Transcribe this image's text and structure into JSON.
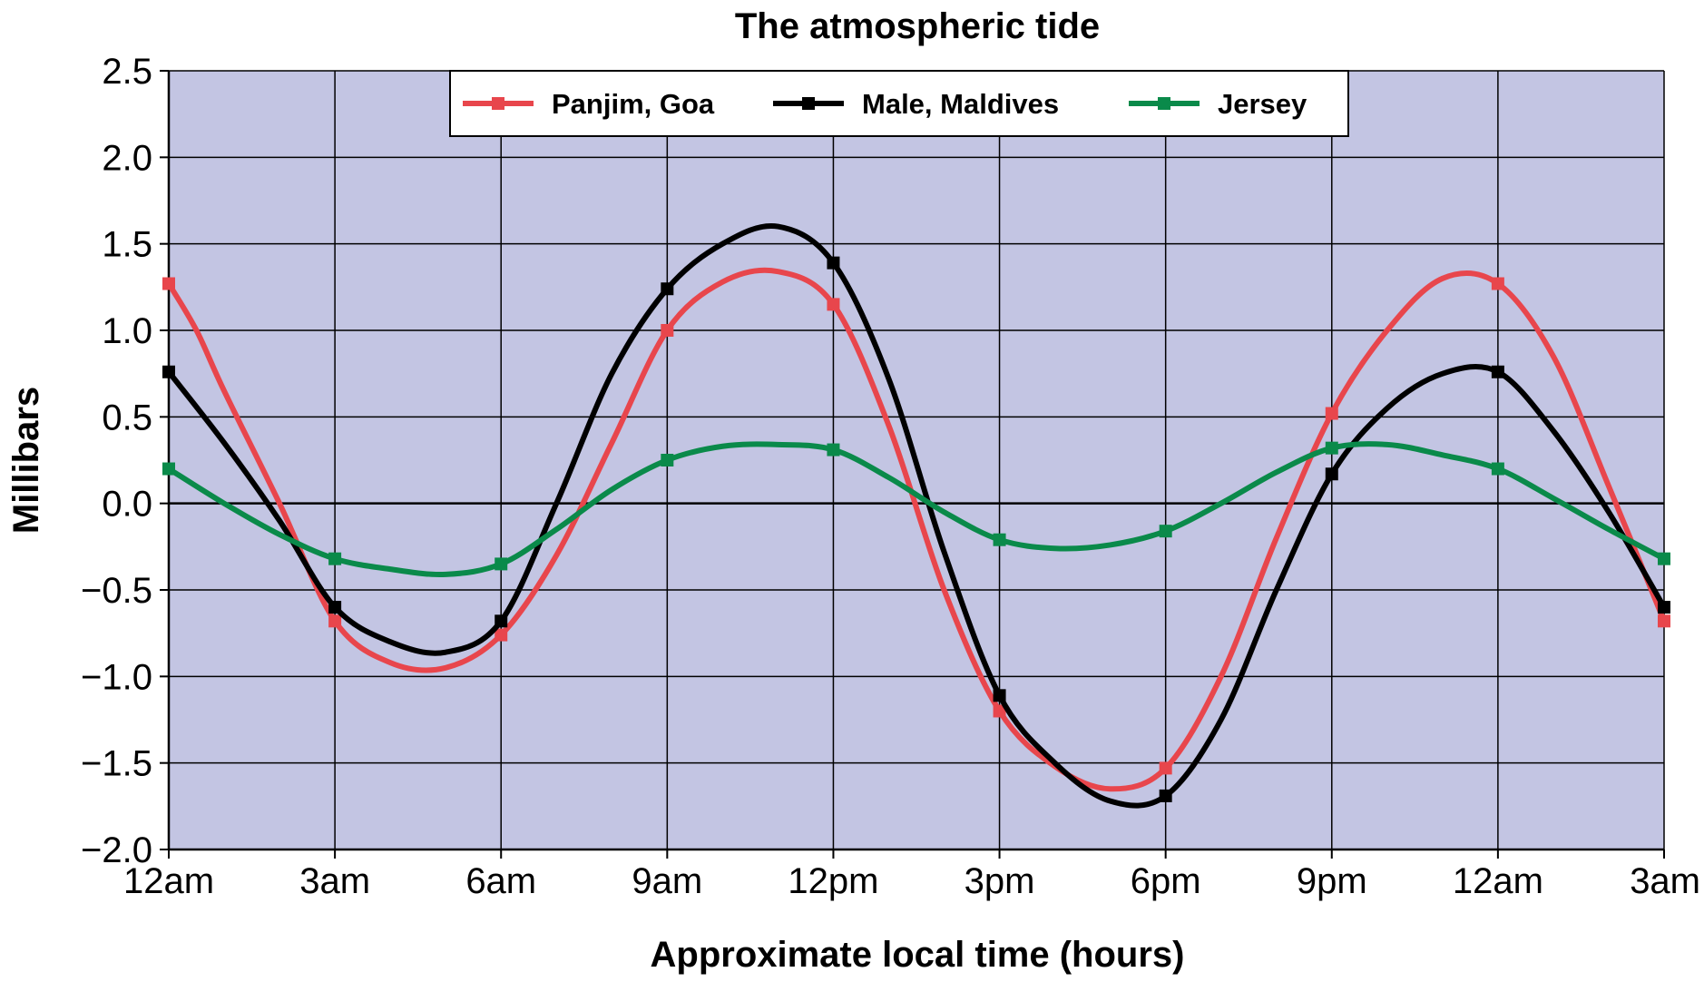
{
  "chart_data": {
    "type": "line",
    "title": "The atmospheric tide",
    "xlabel": "Approximate local time (hours)",
    "ylabel": "Millibars",
    "x_tick_labels": [
      "12am",
      "3am",
      "6am",
      "9am",
      "12pm",
      "3pm",
      "6pm",
      "9pm",
      "12am",
      "3am"
    ],
    "x_range_hours": [
      0,
      27
    ],
    "y_tick_labels": [
      "2.5",
      "2.0",
      "1.5",
      "1.0",
      "0.5",
      "0.0",
      "−0.5",
      "−1.0",
      "−1.5",
      "−2.0"
    ],
    "y_tick_values": [
      2.5,
      2.0,
      1.5,
      1.0,
      0.5,
      0.0,
      -0.5,
      -1.0,
      -1.5,
      -2.0
    ],
    "ylim": [
      -2.0,
      2.5
    ],
    "grid": true,
    "plot_background": "#c3c5e3",
    "legend_position": "top-center",
    "marker_hours": [
      0,
      3,
      6,
      9,
      12,
      15,
      18,
      21,
      24,
      27
    ],
    "series": [
      {
        "name": "Panjim, Goa",
        "color": "#e8464c",
        "marker_values": [
          1.27,
          -0.68,
          -0.76,
          1.0,
          1.15,
          -1.2,
          -1.53,
          0.52,
          1.27,
          -0.68
        ],
        "curve": [
          [
            0,
            1.27
          ],
          [
            0.5,
            1.0
          ],
          [
            1,
            0.65
          ],
          [
            2,
            0.0
          ],
          [
            3,
            -0.68
          ],
          [
            4,
            -0.92
          ],
          [
            5,
            -0.95
          ],
          [
            6,
            -0.76
          ],
          [
            7,
            -0.3
          ],
          [
            8,
            0.35
          ],
          [
            9,
            1.0
          ],
          [
            10,
            1.28
          ],
          [
            11,
            1.34
          ],
          [
            12,
            1.15
          ],
          [
            13,
            0.45
          ],
          [
            14,
            -0.5
          ],
          [
            15,
            -1.2
          ],
          [
            16,
            -1.52
          ],
          [
            17,
            -1.65
          ],
          [
            18,
            -1.53
          ],
          [
            19,
            -1.0
          ],
          [
            20,
            -0.2
          ],
          [
            21,
            0.52
          ],
          [
            22,
            1.0
          ],
          [
            23,
            1.3
          ],
          [
            24,
            1.27
          ],
          [
            25,
            0.85
          ],
          [
            26,
            0.1
          ],
          [
            27,
            -0.68
          ]
        ]
      },
      {
        "name": "Male, Maldives",
        "color": "#000000",
        "marker_values": [
          0.76,
          -0.6,
          -0.68,
          1.24,
          1.39,
          -1.11,
          -1.69,
          0.17,
          0.76,
          -0.6
        ],
        "curve": [
          [
            0,
            0.76
          ],
          [
            1,
            0.35
          ],
          [
            2,
            -0.1
          ],
          [
            3,
            -0.6
          ],
          [
            4,
            -0.8
          ],
          [
            5,
            -0.86
          ],
          [
            6,
            -0.68
          ],
          [
            7,
            0.0
          ],
          [
            8,
            0.75
          ],
          [
            9,
            1.24
          ],
          [
            10,
            1.5
          ],
          [
            11,
            1.6
          ],
          [
            12,
            1.39
          ],
          [
            13,
            0.72
          ],
          [
            14,
            -0.28
          ],
          [
            15,
            -1.11
          ],
          [
            16,
            -1.5
          ],
          [
            17,
            -1.72
          ],
          [
            18,
            -1.69
          ],
          [
            19,
            -1.25
          ],
          [
            20,
            -0.5
          ],
          [
            21,
            0.17
          ],
          [
            22,
            0.55
          ],
          [
            23,
            0.75
          ],
          [
            24,
            0.76
          ],
          [
            25,
            0.42
          ],
          [
            26,
            -0.05
          ],
          [
            27,
            -0.6
          ]
        ]
      },
      {
        "name": "Jersey",
        "color": "#0a8a4a",
        "marker_values": [
          0.2,
          -0.32,
          -0.35,
          0.25,
          0.31,
          -0.21,
          -0.16,
          0.32,
          0.2,
          -0.32
        ],
        "curve": [
          [
            0,
            0.2
          ],
          [
            1,
            0.0
          ],
          [
            2,
            -0.18
          ],
          [
            3,
            -0.32
          ],
          [
            4,
            -0.38
          ],
          [
            5,
            -0.41
          ],
          [
            6,
            -0.35
          ],
          [
            7,
            -0.15
          ],
          [
            8,
            0.08
          ],
          [
            9,
            0.25
          ],
          [
            10,
            0.33
          ],
          [
            11,
            0.34
          ],
          [
            12,
            0.31
          ],
          [
            13,
            0.15
          ],
          [
            14,
            -0.05
          ],
          [
            15,
            -0.21
          ],
          [
            16,
            -0.26
          ],
          [
            17,
            -0.24
          ],
          [
            18,
            -0.16
          ],
          [
            19,
            0.0
          ],
          [
            20,
            0.18
          ],
          [
            21,
            0.32
          ],
          [
            22,
            0.34
          ],
          [
            23,
            0.28
          ],
          [
            24,
            0.2
          ],
          [
            25,
            0.03
          ],
          [
            26,
            -0.15
          ],
          [
            27,
            -0.32
          ]
        ]
      }
    ]
  }
}
